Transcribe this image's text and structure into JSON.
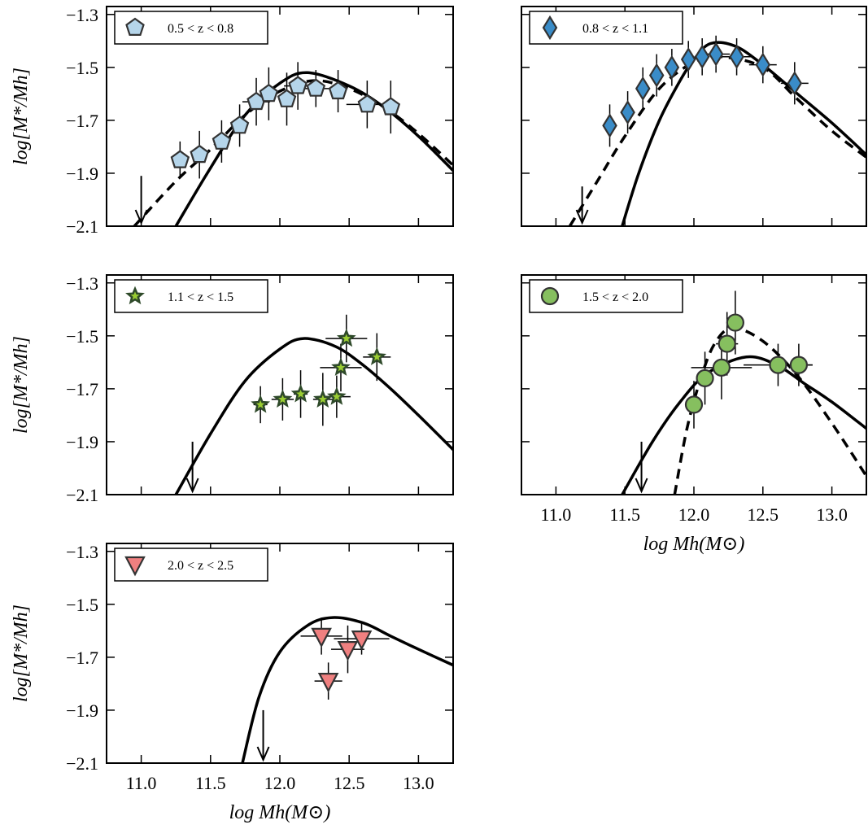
{
  "chart_data": [
    {
      "type": "scatter",
      "xlim": [
        10.75,
        13.25
      ],
      "ylim": [
        -2.1,
        -1.27
      ],
      "xticks": [
        {
          "value": 11.0,
          "label": "11.0"
        },
        {
          "value": 11.5,
          "label": "11.5"
        },
        {
          "value": 12.0,
          "label": "12.0"
        },
        {
          "value": 12.5,
          "label": "12.5"
        },
        {
          "value": 13.0,
          "label": "13.0"
        }
      ],
      "yticks": [
        {
          "value": -1.3,
          "label": "−1.3"
        },
        {
          "value": -1.5,
          "label": "−1.5"
        },
        {
          "value": -1.7,
          "label": "−1.7"
        },
        {
          "value": -1.9,
          "label": "−1.9"
        },
        {
          "value": -2.1,
          "label": "−2.1"
        }
      ],
      "show_xtick_labels": false,
      "show_ytick_labels": true,
      "ylabel": "log[M*/Mh]",
      "legend": "upper left",
      "series": [
        {
          "name": "0.5 < z < 0.8",
          "marker": "pentagon",
          "color": "#b5d5ea",
          "x": [
            11.28,
            11.42,
            11.58,
            11.71,
            11.83,
            11.92,
            12.05,
            12.13,
            12.26,
            12.42,
            12.63,
            12.8
          ],
          "values": [
            -1.85,
            -1.83,
            -1.78,
            -1.72,
            -1.63,
            -1.6,
            -1.62,
            -1.57,
            -1.58,
            -1.59,
            -1.64,
            -1.65
          ],
          "xerr": [
            0.03,
            0.03,
            0.05,
            0.05,
            0.1,
            0.06,
            0.06,
            0.1,
            0.1,
            0.04,
            0.15,
            0.03
          ],
          "yerr": [
            0.07,
            0.09,
            0.08,
            0.08,
            0.09,
            0.1,
            0.1,
            0.09,
            0.07,
            0.08,
            0.09,
            0.1
          ]
        }
      ],
      "model": {
        "x": [
          11.25,
          11.5,
          11.75,
          12.0,
          12.2,
          12.5,
          12.75,
          13.0,
          13.25
        ],
        "y": [
          -2.1,
          -1.88,
          -1.68,
          -1.56,
          -1.52,
          -1.57,
          -1.65,
          -1.76,
          -1.89
        ]
      },
      "model_dashed": {
        "x": [
          10.95,
          11.25,
          11.5,
          11.75,
          12.0,
          12.25,
          12.5,
          12.75,
          13.0,
          13.25
        ],
        "y": [
          -2.1,
          -1.93,
          -1.81,
          -1.68,
          -1.59,
          -1.55,
          -1.58,
          -1.65,
          -1.75,
          -1.87
        ]
      },
      "upper_limit": {
        "x": 11.0,
        "y": -1.91
      }
    },
    {
      "type": "scatter",
      "xlim": [
        10.75,
        13.25
      ],
      "ylim": [
        -2.1,
        -1.27
      ],
      "xticks": [
        {
          "value": 11.0,
          "label": "11.0"
        },
        {
          "value": 11.5,
          "label": "11.5"
        },
        {
          "value": 12.0,
          "label": "12.0"
        },
        {
          "value": 12.5,
          "label": "12.5"
        },
        {
          "value": 13.0,
          "label": "13.0"
        }
      ],
      "yticks": [
        {
          "value": -1.3,
          "label": "−1.3"
        },
        {
          "value": -1.5,
          "label": "−1.5"
        },
        {
          "value": -1.7,
          "label": "−1.7"
        },
        {
          "value": -1.9,
          "label": "−1.9"
        },
        {
          "value": -2.1,
          "label": "−2.1"
        }
      ],
      "show_xtick_labels": false,
      "show_ytick_labels": false,
      "legend": "upper left",
      "series": [
        {
          "name": "0.8 < z < 1.1",
          "marker": "diamond",
          "color": "#3a8cc8",
          "x": [
            11.39,
            11.52,
            11.63,
            11.73,
            11.84,
            11.96,
            12.06,
            12.16,
            12.31,
            12.5,
            12.73
          ],
          "values": [
            -1.72,
            -1.67,
            -1.58,
            -1.53,
            -1.5,
            -1.47,
            -1.46,
            -1.45,
            -1.46,
            -1.49,
            -1.56
          ],
          "xerr": [
            0.03,
            0.03,
            0.03,
            0.04,
            0.04,
            0.05,
            0.05,
            0.1,
            0.12,
            0.1,
            0.1
          ],
          "yerr": [
            0.08,
            0.08,
            0.08,
            0.08,
            0.07,
            0.07,
            0.07,
            0.07,
            0.07,
            0.07,
            0.08
          ]
        }
      ],
      "model": {
        "x": [
          11.48,
          11.6,
          11.75,
          11.9,
          12.0,
          12.12,
          12.3,
          12.5,
          12.75,
          13.0,
          13.25
        ],
        "y": [
          -2.1,
          -1.9,
          -1.7,
          -1.55,
          -1.47,
          -1.41,
          -1.42,
          -1.49,
          -1.6,
          -1.71,
          -1.83
        ]
      },
      "model_dashed": {
        "x": [
          11.1,
          11.3,
          11.5,
          11.75,
          12.0,
          12.2,
          12.5,
          12.75,
          13.0,
          13.25
        ],
        "y": [
          -2.1,
          -1.93,
          -1.76,
          -1.58,
          -1.48,
          -1.46,
          -1.5,
          -1.62,
          -1.74,
          -1.84
        ]
      },
      "upper_limit": {
        "x": 11.19,
        "y": -1.95
      }
    },
    {
      "type": "scatter",
      "xlim": [
        10.75,
        13.25
      ],
      "ylim": [
        -2.1,
        -1.27
      ],
      "xticks": [
        {
          "value": 11.0,
          "label": "11.0"
        },
        {
          "value": 11.5,
          "label": "11.5"
        },
        {
          "value": 12.0,
          "label": "12.0"
        },
        {
          "value": 12.5,
          "label": "12.5"
        },
        {
          "value": 13.0,
          "label": "13.0"
        }
      ],
      "yticks": [
        {
          "value": -1.3,
          "label": "−1.3"
        },
        {
          "value": -1.5,
          "label": "−1.5"
        },
        {
          "value": -1.7,
          "label": "−1.7"
        },
        {
          "value": -1.9,
          "label": "−1.9"
        },
        {
          "value": -2.1,
          "label": "−2.1"
        }
      ],
      "show_xtick_labels": false,
      "show_ytick_labels": true,
      "ylabel": "log[M*/Mh]",
      "legend": "upper left",
      "series": [
        {
          "name": "1.1 < z < 1.5",
          "marker": "star",
          "color": "#9acd32",
          "x": [
            11.86,
            12.02,
            12.15,
            12.31,
            12.41,
            12.44,
            12.48,
            12.7
          ],
          "values": [
            -1.76,
            -1.74,
            -1.72,
            -1.74,
            -1.73,
            -1.62,
            -1.51,
            -1.58
          ],
          "xerr": [
            0.05,
            0.08,
            0.05,
            0.07,
            0.1,
            0.15,
            0.15,
            0.1
          ],
          "yerr": [
            0.07,
            0.08,
            0.09,
            0.1,
            0.08,
            0.09,
            0.09,
            0.09
          ]
        }
      ],
      "model": {
        "x": [
          11.25,
          11.5,
          11.75,
          12.0,
          12.17,
          12.4,
          12.6,
          12.8,
          13.0,
          13.25
        ],
        "y": [
          -2.1,
          -1.87,
          -1.67,
          -1.55,
          -1.51,
          -1.54,
          -1.61,
          -1.7,
          -1.8,
          -1.93
        ]
      },
      "upper_limit": {
        "x": 11.37,
        "y": -1.9
      }
    },
    {
      "type": "scatter",
      "xlim": [
        10.75,
        13.25
      ],
      "ylim": [
        -2.1,
        -1.27
      ],
      "xticks": [
        {
          "value": 11.0,
          "label": "11.0"
        },
        {
          "value": 11.5,
          "label": "11.5"
        },
        {
          "value": 12.0,
          "label": "12.0"
        },
        {
          "value": 12.5,
          "label": "12.5"
        },
        {
          "value": 13.0,
          "label": "13.0"
        }
      ],
      "yticks": [
        {
          "value": -1.3,
          "label": "−1.3"
        },
        {
          "value": -1.5,
          "label": "−1.5"
        },
        {
          "value": -1.7,
          "label": "−1.7"
        },
        {
          "value": -1.9,
          "label": "−1.9"
        },
        {
          "value": -2.1,
          "label": "−2.1"
        }
      ],
      "show_xtick_labels": true,
      "show_ytick_labels": false,
      "xlabel": "log Mh(M⊙)",
      "legend": "upper left",
      "series": [
        {
          "name": "1.5 < z < 2.0",
          "marker": "circle",
          "color": "#86bf5f",
          "x": [
            12.0,
            12.08,
            12.2,
            12.24,
            12.3,
            12.61,
            12.76
          ],
          "values": [
            -1.76,
            -1.66,
            -1.62,
            -1.53,
            -1.45,
            -1.61,
            -1.61
          ],
          "xerr": [
            0.03,
            0.05,
            0.22,
            0.08,
            0.05,
            0.25,
            0.1
          ],
          "yerr": [
            0.09,
            0.1,
            0.12,
            0.12,
            0.12,
            0.08,
            0.08
          ]
        }
      ],
      "model": {
        "x": [
          11.48,
          11.7,
          11.9,
          12.1,
          12.38,
          12.6,
          12.8,
          13.0,
          13.25
        ],
        "y": [
          -2.1,
          -1.9,
          -1.75,
          -1.64,
          -1.58,
          -1.61,
          -1.68,
          -1.75,
          -1.85
        ]
      },
      "model_dashed": {
        "x": [
          11.86,
          11.95,
          12.05,
          12.15,
          12.28,
          12.5,
          12.75,
          13.0,
          13.25
        ],
        "y": [
          -2.1,
          -1.85,
          -1.66,
          -1.53,
          -1.47,
          -1.52,
          -1.65,
          -1.83,
          -2.03
        ]
      },
      "upper_limit": {
        "x": 11.62,
        "y": -1.9
      }
    },
    {
      "type": "scatter",
      "xlim": [
        10.75,
        13.25
      ],
      "ylim": [
        -2.1,
        -1.27
      ],
      "xticks": [
        {
          "value": 11.0,
          "label": "11.0"
        },
        {
          "value": 11.5,
          "label": "11.5"
        },
        {
          "value": 12.0,
          "label": "12.0"
        },
        {
          "value": 12.5,
          "label": "12.5"
        },
        {
          "value": 13.0,
          "label": "13.0"
        }
      ],
      "yticks": [
        {
          "value": -1.3,
          "label": "−1.3"
        },
        {
          "value": -1.5,
          "label": "−1.5"
        },
        {
          "value": -1.7,
          "label": "−1.7"
        },
        {
          "value": -1.9,
          "label": "−1.9"
        },
        {
          "value": -2.1,
          "label": "−2.1"
        }
      ],
      "show_xtick_labels": true,
      "show_ytick_labels": true,
      "xlabel": "log Mh(M⊙)",
      "ylabel": "log[M*/Mh]",
      "legend": "upper left",
      "series": [
        {
          "name": "2.0 < z < 2.5",
          "marker": "triangle_down",
          "color": "#f08080",
          "x": [
            12.3,
            12.35,
            12.49,
            12.59
          ],
          "values": [
            -1.62,
            -1.79,
            -1.67,
            -1.63
          ],
          "xerr": [
            0.15,
            0.1,
            0.12,
            0.2
          ],
          "yerr": [
            0.07,
            0.07,
            0.09,
            0.06
          ]
        }
      ],
      "model": {
        "x": [
          11.73,
          11.85,
          12.0,
          12.2,
          12.38,
          12.6,
          12.8,
          13.0,
          13.25
        ],
        "y": [
          -2.1,
          -1.85,
          -1.68,
          -1.58,
          -1.55,
          -1.57,
          -1.62,
          -1.67,
          -1.73
        ]
      },
      "upper_limit": {
        "x": 11.88,
        "y": -1.9
      }
    }
  ]
}
